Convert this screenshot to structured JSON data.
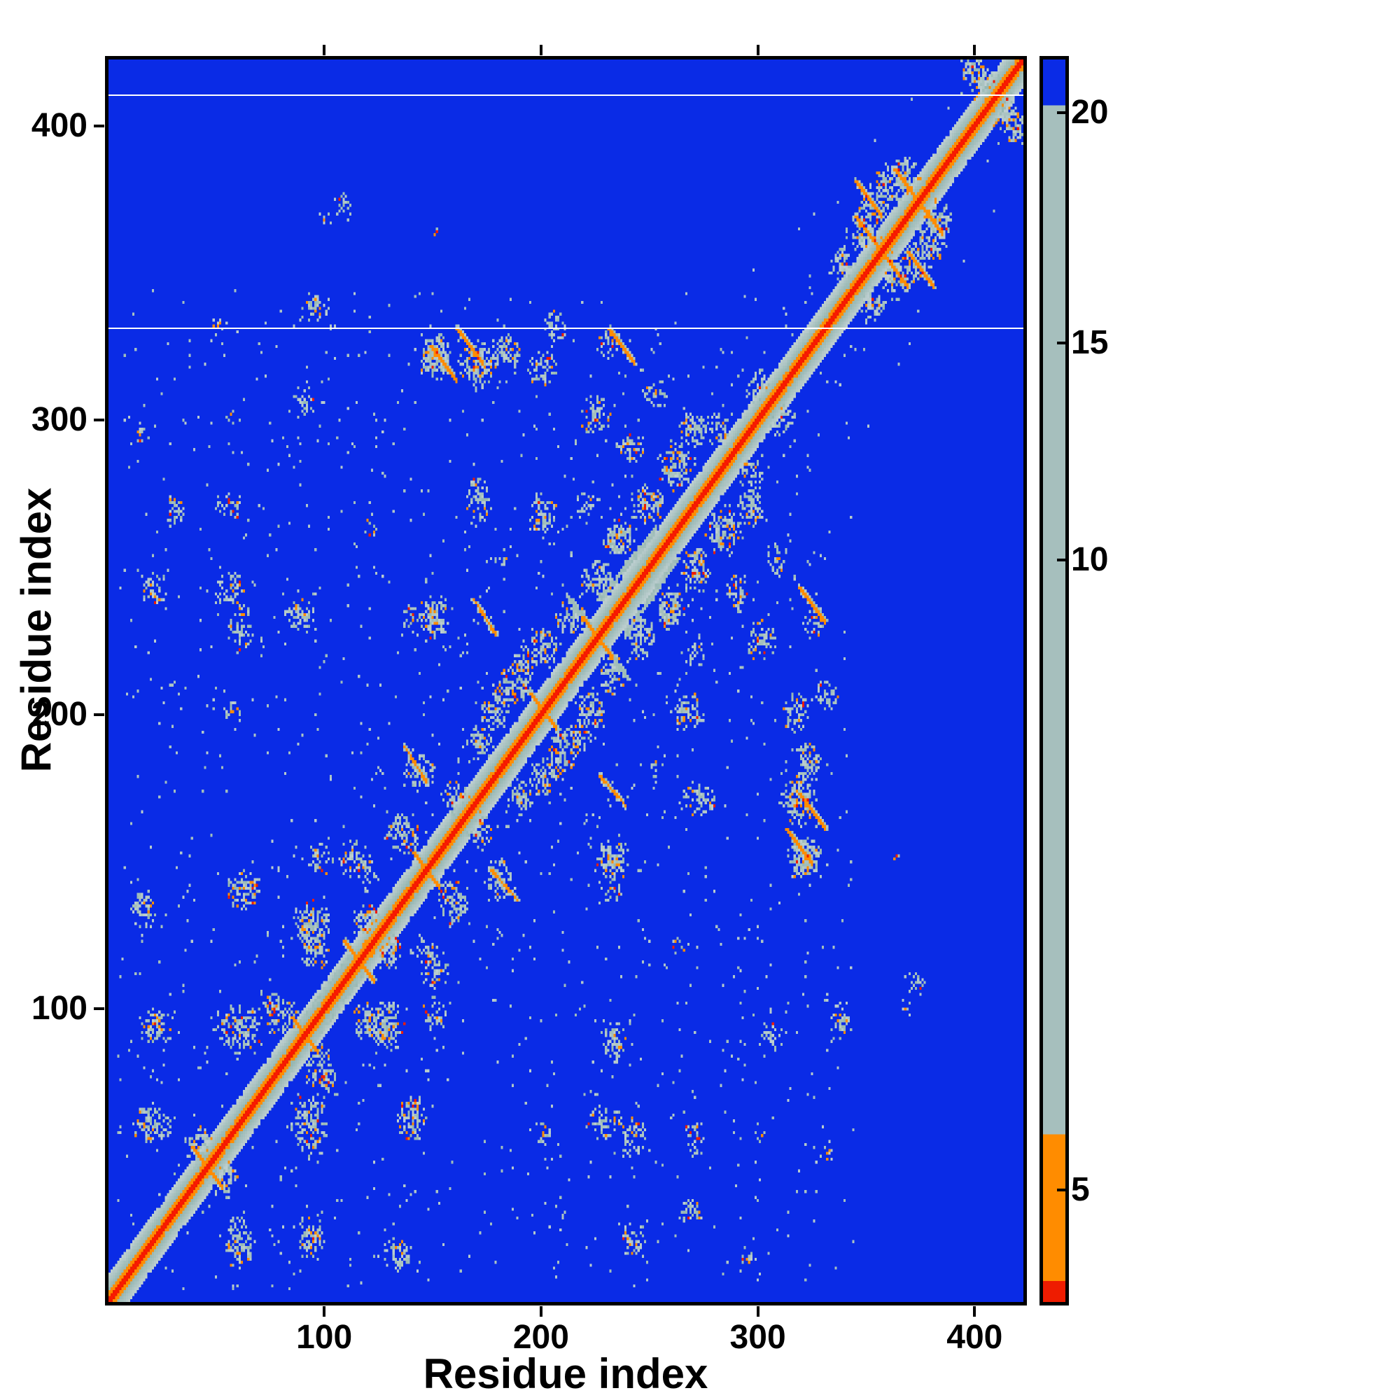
{
  "chart_data": {
    "type": "heatmap",
    "title": "",
    "xlabel": "Residue index",
    "ylabel": "Residue index",
    "x_range": [
      1,
      422
    ],
    "y_range": [
      1,
      422
    ],
    "x_ticks": [
      100,
      200,
      300,
      400
    ],
    "y_ticks": [
      100,
      200,
      300,
      400
    ],
    "n_residues": 422,
    "grid": false,
    "legend": "none",
    "description": "Protein residue-residue distance map: red main diagonal (shortest distances), orange short-range contacts, pale gray-green medium-range contact clusters, deep blue background for long distances; thin white horizontal gap lines at two rows.",
    "colors": {
      "red": "#ee1c00",
      "orange": "#ff8c00",
      "gray": "#a6bfbd",
      "blue": "#0a2be6",
      "frame": "#000000",
      "background": "#ffffff"
    },
    "value_thresholds": {
      "red_max": 4.2,
      "orange_max": 8.0,
      "gray_max": 21.0,
      "background_value": 30
    },
    "colorbar": {
      "orientation": "vertical",
      "ticks": [
        5,
        10,
        15,
        20
      ],
      "tick_positions": [
        0.09,
        0.597,
        0.772,
        0.957
      ],
      "stops": [
        {
          "color": "#ee1c00",
          "from": 0.0,
          "to": 0.017
        },
        {
          "color": "#ff8c00",
          "from": 0.017,
          "to": 0.135
        },
        {
          "color": "#a6bfbd",
          "from": 0.135,
          "to": 0.963
        },
        {
          "color": "#0a2be6",
          "from": 0.963,
          "to": 1.0
        }
      ]
    },
    "gap_rows": [
      331,
      410
    ],
    "diagonal": {
      "slope_value_per_offset": 2.2,
      "noise": 2.4,
      "halo_half_width": 14
    },
    "clusters": [
      [
        20,
        60,
        10,
        8,
        0.5
      ],
      [
        22,
        92,
        9,
        8,
        0.5
      ],
      [
        60,
        92,
        12,
        9,
        0.5
      ],
      [
        42,
        52,
        8,
        8,
        0.45
      ],
      [
        78,
        98,
        10,
        8,
        0.5
      ],
      [
        16,
        133,
        7,
        7,
        0.45
      ],
      [
        62,
        140,
        9,
        8,
        0.45
      ],
      [
        93,
        128,
        10,
        9,
        0.5
      ],
      [
        97,
        150,
        7,
        6,
        0.4
      ],
      [
        120,
        128,
        9,
        8,
        0.5
      ],
      [
        112,
        150,
        8,
        7,
        0.45
      ],
      [
        135,
        158,
        9,
        8,
        0.5
      ],
      [
        143,
        180,
        8,
        8,
        0.45
      ],
      [
        150,
        232,
        8,
        8,
        0.5
      ],
      [
        160,
        170,
        8,
        7,
        0.5
      ],
      [
        170,
        190,
        8,
        7,
        0.45
      ],
      [
        178,
        200,
        8,
        7,
        0.45
      ],
      [
        188,
        210,
        9,
        8,
        0.5
      ],
      [
        200,
        222,
        9,
        8,
        0.5
      ],
      [
        213,
        232,
        8,
        7,
        0.5
      ],
      [
        225,
        245,
        8,
        7,
        0.45
      ],
      [
        150,
        320,
        9,
        8,
        0.5
      ],
      [
        168,
        318,
        8,
        7,
        0.45
      ],
      [
        183,
        322,
        8,
        7,
        0.45
      ],
      [
        200,
        316,
        8,
        7,
        0.4
      ],
      [
        95,
        338,
        7,
        6,
        0.4
      ],
      [
        55,
        270,
        7,
        6,
        0.35
      ],
      [
        20,
        242,
        7,
        7,
        0.4
      ],
      [
        55,
        242,
        8,
        7,
        0.45
      ],
      [
        88,
        232,
        8,
        7,
        0.45
      ],
      [
        30,
        268,
        6,
        6,
        0.35
      ],
      [
        235,
        258,
        8,
        7,
        0.5
      ],
      [
        248,
        270,
        9,
        8,
        0.5
      ],
      [
        262,
        282,
        9,
        8,
        0.5
      ],
      [
        270,
        296,
        8,
        7,
        0.45
      ],
      [
        252,
        308,
        7,
        6,
        0.4
      ],
      [
        225,
        300,
        8,
        7,
        0.4
      ],
      [
        240,
        290,
        7,
        6,
        0.4
      ],
      [
        268,
        200,
        8,
        7,
        0.45
      ],
      [
        272,
        170,
        8,
        7,
        0.45
      ],
      [
        318,
        172,
        9,
        8,
        0.5
      ],
      [
        322,
        150,
        8,
        7,
        0.5
      ],
      [
        305,
        90,
        7,
        6,
        0.35
      ],
      [
        60,
        225,
        7,
        6,
        0.35
      ],
      [
        348,
        362,
        9,
        8,
        0.5
      ],
      [
        360,
        378,
        9,
        8,
        0.5
      ],
      [
        372,
        352,
        9,
        8,
        0.45
      ],
      [
        383,
        368,
        8,
        7,
        0.45
      ],
      [
        352,
        338,
        8,
        7,
        0.4
      ],
      [
        405,
        412,
        8,
        7,
        0.5
      ],
      [
        398,
        418,
        7,
        6,
        0.45
      ],
      [
        57,
        200,
        5,
        5,
        0.3
      ],
      [
        57,
        300,
        4,
        4,
        0.25
      ],
      [
        330,
        205,
        7,
        6,
        0.35
      ],
      [
        325,
        230,
        7,
        6,
        0.35
      ],
      [
        372,
        108,
        6,
        5,
        0.3
      ],
      [
        14,
        295,
        4,
        4,
        0.25
      ],
      [
        50,
        332,
        4,
        3,
        0.3
      ],
      [
        100,
        368,
        4,
        3,
        0.25
      ],
      [
        50,
        372,
        3,
        3,
        0.2
      ],
      [
        150,
        364,
        4,
        3,
        0.2
      ],
      [
        232,
        60,
        7,
        6,
        0.3
      ],
      [
        118,
        95,
        8,
        7,
        0.4
      ],
      [
        145,
        118,
        7,
        6,
        0.35
      ],
      [
        232,
        140,
        6,
        5,
        0.3
      ],
      [
        260,
        235,
        7,
        6,
        0.4
      ],
      [
        288,
        262,
        7,
        6,
        0.35
      ],
      [
        296,
        280,
        7,
        6,
        0.4
      ],
      [
        310,
        300,
        7,
        6,
        0.4
      ],
      [
        120,
        262,
        5,
        4,
        0.25
      ],
      [
        196,
        262,
        6,
        5,
        0.3
      ],
      [
        220,
        270,
        6,
        5,
        0.3
      ],
      [
        180,
        252,
        5,
        4,
        0.25
      ],
      [
        205,
        180,
        7,
        6,
        0.4
      ],
      [
        218,
        192,
        7,
        6,
        0.4
      ]
    ],
    "streaks": [
      {
        "x1": 38,
        "y1": 52,
        "x2": 50,
        "y2": 40,
        "kind": "orange"
      },
      {
        "x1": 84,
        "y1": 96,
        "x2": 94,
        "y2": 86,
        "kind": "orange"
      },
      {
        "x1": 108,
        "y1": 122,
        "x2": 120,
        "y2": 110,
        "kind": "orange"
      },
      {
        "x1": 140,
        "y1": 152,
        "x2": 152,
        "y2": 140,
        "kind": "orange"
      },
      {
        "x1": 194,
        "y1": 206,
        "x2": 206,
        "y2": 194,
        "kind": "orange"
      },
      {
        "x1": 212,
        "y1": 238,
        "x2": 238,
        "y2": 212,
        "kind": "gray"
      },
      {
        "x1": 218,
        "y1": 232,
        "x2": 232,
        "y2": 218,
        "kind": "orange"
      },
      {
        "x1": 160,
        "y1": 330,
        "x2": 172,
        "y2": 318,
        "kind": "orange"
      },
      {
        "x1": 318,
        "y1": 242,
        "x2": 330,
        "y2": 230,
        "kind": "orange"
      },
      {
        "x1": 312,
        "y1": 160,
        "x2": 324,
        "y2": 148,
        "kind": "orange"
      },
      {
        "x1": 344,
        "y1": 368,
        "x2": 356,
        "y2": 356,
        "kind": "orange"
      },
      {
        "x1": 362,
        "y1": 384,
        "x2": 374,
        "y2": 372,
        "kind": "orange"
      },
      {
        "x1": 368,
        "y1": 356,
        "x2": 380,
        "y2": 344,
        "kind": "orange"
      },
      {
        "x1": 168,
        "y1": 238,
        "x2": 178,
        "y2": 226,
        "kind": "orange"
      },
      {
        "x1": 136,
        "y1": 188,
        "x2": 146,
        "y2": 176,
        "kind": "orange"
      },
      {
        "x1": 226,
        "y1": 238,
        "x2": 252,
        "y2": 262,
        "kind": "gray"
      },
      {
        "x1": 88,
        "y1": 94,
        "x2": 112,
        "y2": 118,
        "kind": "gray"
      }
    ],
    "speckle_count": 700,
    "extra_speckles": 80,
    "seed": 1234
  }
}
